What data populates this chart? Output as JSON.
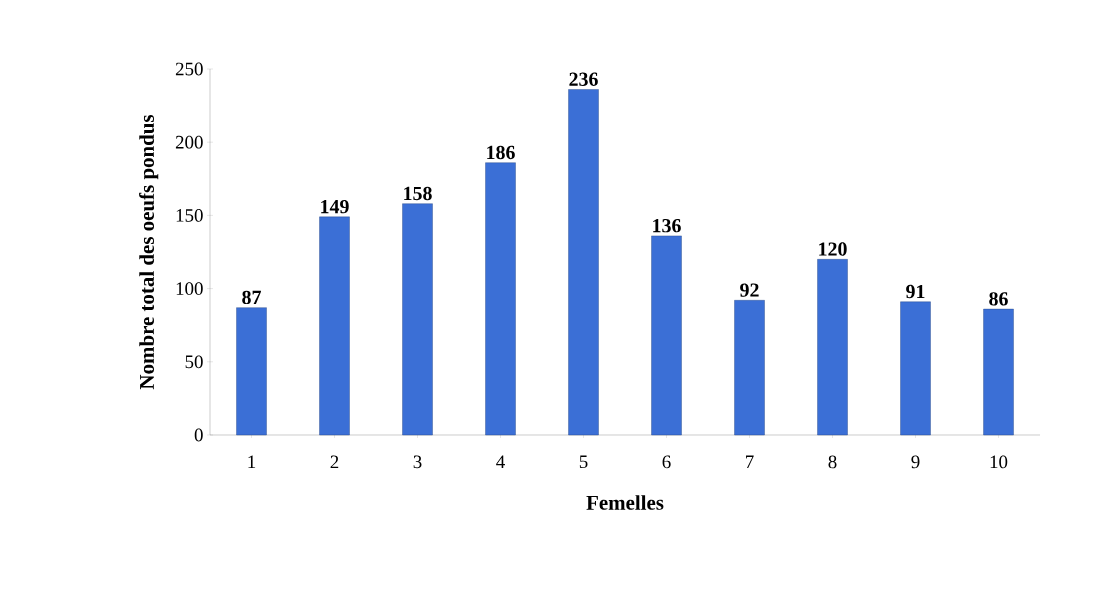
{
  "chart_data": {
    "type": "bar",
    "xlabel": "Femelles",
    "ylabel": "Nombre total des oeufs pondus",
    "categories": [
      "1",
      "2",
      "3",
      "4",
      "5",
      "6",
      "7",
      "8",
      "9",
      "10"
    ],
    "values": [
      87,
      149,
      158,
      186,
      236,
      136,
      92,
      120,
      91,
      86
    ],
    "color": "#3b6fd6",
    "ylim": [
      0,
      250
    ],
    "yticks": [
      0,
      50,
      100,
      150,
      200,
      250
    ],
    "data_labels": true,
    "grid": false
  }
}
